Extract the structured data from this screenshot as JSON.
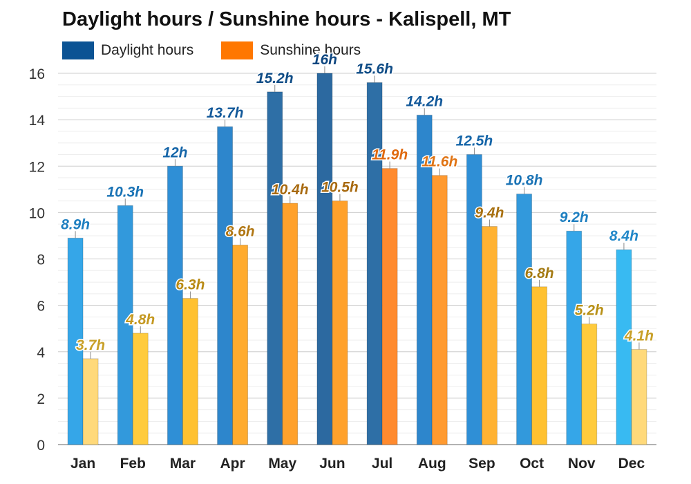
{
  "chart_data": {
    "type": "bar",
    "title": "Daylight hours / Sunshine hours - Kalispell, MT",
    "xlabel": "",
    "ylabel": "",
    "ylim": [
      0,
      16
    ],
    "yticks": [
      0,
      2,
      4,
      6,
      8,
      10,
      12,
      14,
      16
    ],
    "grid": true,
    "legend_position": "top-left",
    "categories": [
      "Jan",
      "Feb",
      "Mar",
      "Apr",
      "May",
      "Jun",
      "Jul",
      "Aug",
      "Sep",
      "Oct",
      "Nov",
      "Dec"
    ],
    "series": [
      {
        "name": "Daylight hours",
        "legend_color": "#0b5394",
        "values": [
          8.9,
          10.3,
          12,
          13.7,
          15.2,
          16,
          15.6,
          14.2,
          12.5,
          10.8,
          9.2,
          8.4
        ],
        "labels": [
          "8.9h",
          "10.3h",
          "12h",
          "13.7h",
          "15.2h",
          "16h",
          "15.6h",
          "14.2h",
          "12.5h",
          "10.8h",
          "9.2h",
          "8.4h"
        ],
        "colors": [
          "#35a6e8",
          "#3299dc",
          "#2f8fd6",
          "#2d86cc",
          "#2e6fa6",
          "#2c69a0",
          "#2e6fa6",
          "#2d86cc",
          "#2f8fd6",
          "#3299dc",
          "#35a6e8",
          "#38baf2"
        ],
        "label_colors": [
          "#1e7fc0",
          "#1a73b5",
          "#1565a8",
          "#13599a",
          "#0f4c86",
          "#0d4680",
          "#0f4c86",
          "#13599a",
          "#1565a8",
          "#1a73b5",
          "#1e7fc0",
          "#2187c8"
        ]
      },
      {
        "name": "Sunshine hours",
        "legend_color": "#ff7700",
        "values": [
          3.7,
          4.8,
          6.3,
          8.6,
          10.4,
          10.5,
          11.9,
          11.6,
          9.4,
          6.8,
          5.2,
          4.1
        ],
        "labels": [
          "3.7h",
          "4.8h",
          "6.3h",
          "8.6h",
          "10.4h",
          "10.5h",
          "11.9h",
          "11.6h",
          "9.4h",
          "6.8h",
          "5.2h",
          "4.1h"
        ],
        "colors": [
          "#ffd97a",
          "#ffcb3d",
          "#ffc130",
          "#ffab2e",
          "#ffa12b",
          "#ffa12b",
          "#ff8a2e",
          "#ff9a30",
          "#ffb232",
          "#ffc130",
          "#ffcb3d",
          "#ffd97a"
        ],
        "label_colors": [
          "#c8a028",
          "#c49820",
          "#b88a14",
          "#b07612",
          "#a86a10",
          "#a86a10",
          "#e06a10",
          "#e07414",
          "#a87010",
          "#a47a12",
          "#b89016",
          "#c8a028"
        ]
      }
    ]
  }
}
